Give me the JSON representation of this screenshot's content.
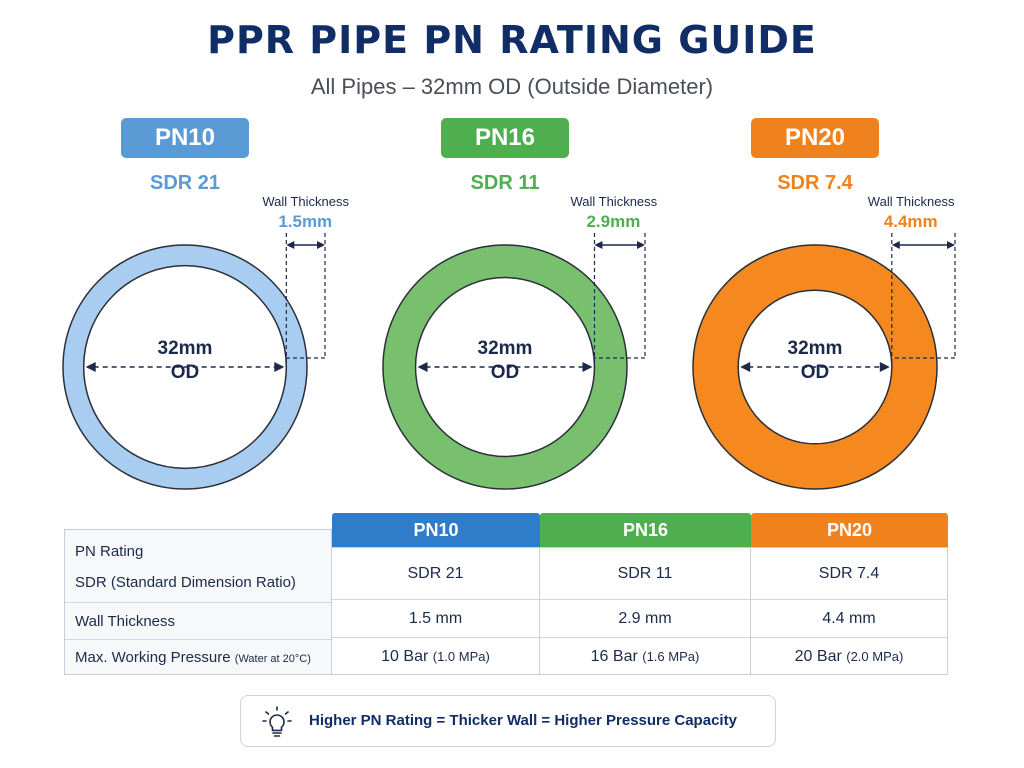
{
  "header": {
    "title": "PPR PIPE PN RATING GUIDE",
    "subtitle": "All Pipes – 32mm OD (Outside Diameter)"
  },
  "pipes": [
    {
      "rating": "PN10",
      "sdr": "SDR 21",
      "wall_label": "Wall Thickness",
      "wall_value": "1.5mm",
      "od_value": "32mm",
      "od_label": "OD",
      "wall_mm": 1.5,
      "color": "#5b9bd5",
      "fill": "#a9cdf0",
      "stroke": "#5a94cc"
    },
    {
      "rating": "PN16",
      "sdr": "SDR 11",
      "wall_label": "Wall Thickness",
      "wall_value": "2.9mm",
      "od_value": "32mm",
      "od_label": "OD",
      "wall_mm": 2.9,
      "color": "#4fae4f",
      "fill": "#78c06e",
      "stroke": "#4f9a45"
    },
    {
      "rating": "PN20",
      "sdr": "SDR 7.4",
      "wall_label": "Wall Thickness",
      "wall_value": "4.4mm",
      "od_value": "32mm",
      "od_label": "OD",
      "wall_mm": 4.4,
      "color": "#f0821e",
      "fill": "#f5891f",
      "stroke": "#d96f12"
    }
  ],
  "table": {
    "row_labels": [
      "PN Rating",
      "SDR (Standard Dimension Ratio)",
      "Wall Thickness",
      "Max. Working Pressure"
    ],
    "pressure_note": "(Water at 20°C)",
    "columns": [
      {
        "head": "PN10",
        "color": "#2f7cc8",
        "sdr": "SDR 21",
        "wall": "1.5 mm",
        "pressure": "10 Bar",
        "pressure_mpa": "(1.0 MPa)"
      },
      {
        "head": "PN16",
        "color": "#4fae4f",
        "sdr": "SDR 11",
        "wall": "2.9 mm",
        "pressure": "16 Bar",
        "pressure_mpa": "(1.6 MPa)"
      },
      {
        "head": "PN20",
        "color": "#f0821e",
        "sdr": "SDR 7.4",
        "wall": "4.4 mm",
        "pressure": "20 Bar",
        "pressure_mpa": "(2.0 MPa)"
      }
    ]
  },
  "note": {
    "icon": "lightbulb-icon",
    "text": "Higher PN Rating = Thicker Wall = Higher Pressure Capacity"
  }
}
